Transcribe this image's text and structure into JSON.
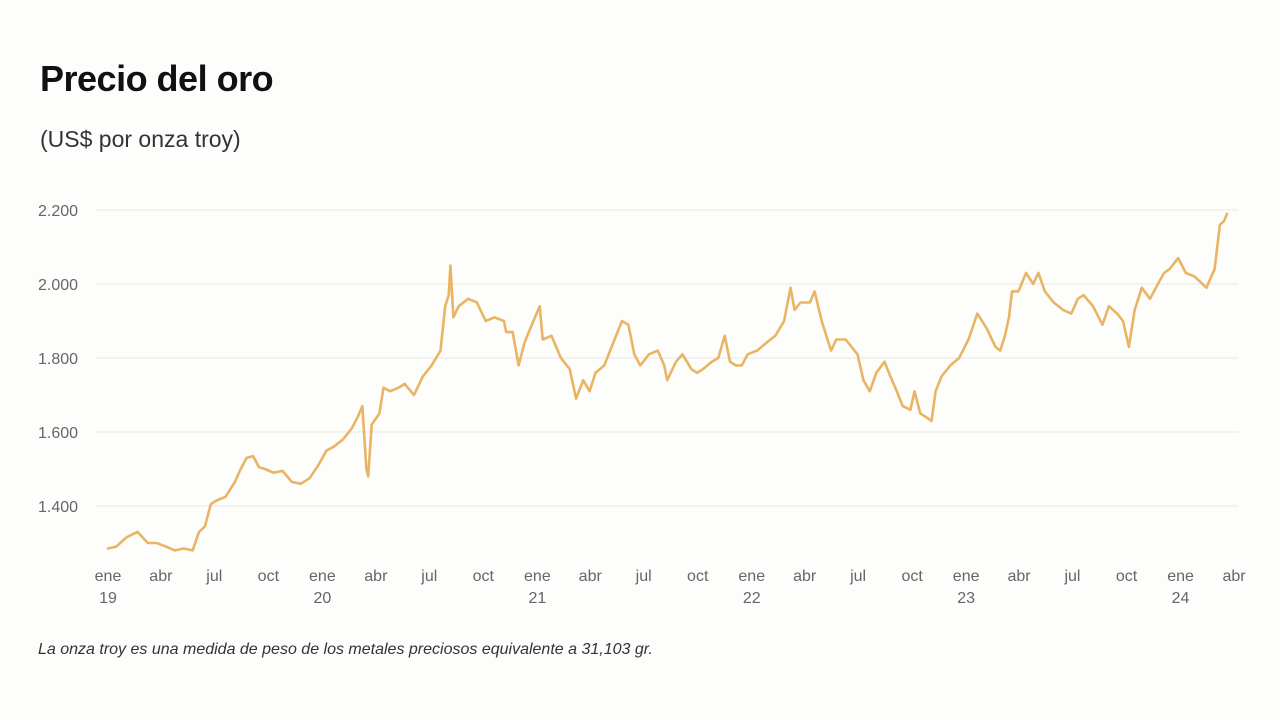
{
  "title": "Precio del oro",
  "subtitle": "(US$ por onza troy)",
  "note": "La onza troy es una medida de peso de los metales preciosos equivalente a 31,103 gr.",
  "colors": {
    "line": "#e9b564",
    "grid": "#e6e6e6",
    "tick_text": "#666666",
    "background": "#fdfdfc"
  },
  "chart_data": {
    "type": "line",
    "title": "Precio del oro",
    "subtitle": "(US$ por onza troy)",
    "xlabel": "",
    "ylabel": "",
    "ylim": [
      1250,
      2200
    ],
    "xlim": [
      "2019-01-01",
      "2024-04-01"
    ],
    "grid": "horizontal",
    "y_ticks": [
      {
        "value": 1400,
        "label": "1.400"
      },
      {
        "value": 1600,
        "label": "1.600"
      },
      {
        "value": 1800,
        "label": "1.800"
      },
      {
        "value": 2000,
        "label": "2.000"
      },
      {
        "value": 2200,
        "label": "2.200"
      }
    ],
    "x_ticks": [
      {
        "date": "2019-01-01",
        "label": "ene",
        "year": "19"
      },
      {
        "date": "2019-04-01",
        "label": "abr"
      },
      {
        "date": "2019-07-01",
        "label": "jul"
      },
      {
        "date": "2019-10-01",
        "label": "oct"
      },
      {
        "date": "2020-01-01",
        "label": "ene",
        "year": "20"
      },
      {
        "date": "2020-04-01",
        "label": "abr"
      },
      {
        "date": "2020-07-01",
        "label": "jul"
      },
      {
        "date": "2020-10-01",
        "label": "oct"
      },
      {
        "date": "2021-01-01",
        "label": "ene",
        "year": "21"
      },
      {
        "date": "2021-04-01",
        "label": "abr"
      },
      {
        "date": "2021-07-01",
        "label": "jul"
      },
      {
        "date": "2021-10-01",
        "label": "oct"
      },
      {
        "date": "2022-01-01",
        "label": "ene",
        "year": "22"
      },
      {
        "date": "2022-04-01",
        "label": "abr"
      },
      {
        "date": "2022-07-01",
        "label": "jul"
      },
      {
        "date": "2022-10-01",
        "label": "oct"
      },
      {
        "date": "2023-01-01",
        "label": "ene",
        "year": "23"
      },
      {
        "date": "2023-04-01",
        "label": "abr"
      },
      {
        "date": "2023-07-01",
        "label": "jul"
      },
      {
        "date": "2023-10-01",
        "label": "oct"
      },
      {
        "date": "2024-01-01",
        "label": "ene",
        "year": "24"
      },
      {
        "date": "2024-04-01",
        "label": "abr"
      }
    ],
    "series": [
      {
        "x": [
          "2019-01-01",
          "2019-01-15",
          "2019-02-01",
          "2019-02-20",
          "2019-03-10",
          "2019-03-25",
          "2019-04-10",
          "2019-04-25",
          "2019-05-10",
          "2019-05-25",
          "2019-06-05",
          "2019-06-15",
          "2019-06-25",
          "2019-07-05",
          "2019-07-20",
          "2019-08-05",
          "2019-08-15",
          "2019-08-25",
          "2019-09-05",
          "2019-09-15",
          "2019-09-25",
          "2019-10-10",
          "2019-10-25",
          "2019-11-10",
          "2019-11-25",
          "2019-12-10",
          "2019-12-25",
          "2020-01-08",
          "2020-01-20",
          "2020-02-05",
          "2020-02-20",
          "2020-03-01",
          "2020-03-09",
          "2020-03-16",
          "2020-03-19",
          "2020-03-25",
          "2020-04-07",
          "2020-04-14",
          "2020-04-25",
          "2020-05-10",
          "2020-05-20",
          "2020-06-05",
          "2020-06-20",
          "2020-07-05",
          "2020-07-20",
          "2020-07-28",
          "2020-08-03",
          "2020-08-06",
          "2020-08-11",
          "2020-08-20",
          "2020-09-05",
          "2020-09-20",
          "2020-10-05",
          "2020-10-20",
          "2020-11-05",
          "2020-11-09",
          "2020-11-20",
          "2020-11-30",
          "2020-12-10",
          "2020-12-20",
          "2021-01-05",
          "2021-01-10",
          "2021-01-25",
          "2021-02-10",
          "2021-02-25",
          "2021-03-08",
          "2021-03-20",
          "2021-03-31",
          "2021-04-10",
          "2021-04-25",
          "2021-05-10",
          "2021-05-25",
          "2021-06-05",
          "2021-06-15",
          "2021-06-25",
          "2021-07-10",
          "2021-07-25",
          "2021-08-05",
          "2021-08-10",
          "2021-08-25",
          "2021-09-05",
          "2021-09-20",
          "2021-09-30",
          "2021-10-10",
          "2021-10-25",
          "2021-11-05",
          "2021-11-16",
          "2021-11-25",
          "2021-12-05",
          "2021-12-15",
          "2021-12-25",
          "2022-01-10",
          "2022-01-25",
          "2022-02-10",
          "2022-02-25",
          "2022-03-08",
          "2022-03-15",
          "2022-03-25",
          "2022-04-10",
          "2022-04-18",
          "2022-04-30",
          "2022-05-10",
          "2022-05-16",
          "2022-05-25",
          "2022-06-10",
          "2022-06-20",
          "2022-06-30",
          "2022-07-10",
          "2022-07-21",
          "2022-08-01",
          "2022-08-15",
          "2022-08-25",
          "2022-09-05",
          "2022-09-15",
          "2022-09-28",
          "2022-10-05",
          "2022-10-15",
          "2022-10-25",
          "2022-11-03",
          "2022-11-10",
          "2022-11-20",
          "2022-12-05",
          "2022-12-20",
          "2023-01-05",
          "2023-01-20",
          "2023-02-05",
          "2023-02-20",
          "2023-02-28",
          "2023-03-08",
          "2023-03-15",
          "2023-03-20",
          "2023-03-31",
          "2023-04-13",
          "2023-04-25",
          "2023-05-04",
          "2023-05-15",
          "2023-05-30",
          "2023-06-15",
          "2023-06-29",
          "2023-07-10",
          "2023-07-20",
          "2023-08-05",
          "2023-08-21",
          "2023-09-01",
          "2023-09-15",
          "2023-09-25",
          "2023-10-05",
          "2023-10-15",
          "2023-10-27",
          "2023-11-10",
          "2023-11-20",
          "2023-12-04",
          "2023-12-13",
          "2023-12-28",
          "2024-01-10",
          "2024-01-25",
          "2024-02-14",
          "2024-02-28",
          "2024-03-08",
          "2024-03-15",
          "2024-03-20"
        ],
        "values": [
          1285,
          1290,
          1315,
          1330,
          1300,
          1300,
          1290,
          1280,
          1285,
          1280,
          1330,
          1345,
          1405,
          1415,
          1425,
          1465,
          1500,
          1530,
          1535,
          1505,
          1500,
          1490,
          1495,
          1465,
          1460,
          1475,
          1510,
          1550,
          1560,
          1580,
          1610,
          1640,
          1670,
          1500,
          1480,
          1620,
          1650,
          1720,
          1710,
          1720,
          1730,
          1700,
          1750,
          1780,
          1820,
          1940,
          1970,
          2050,
          1910,
          1940,
          1960,
          1950,
          1900,
          1910,
          1900,
          1870,
          1870,
          1780,
          1840,
          1880,
          1940,
          1850,
          1860,
          1800,
          1770,
          1690,
          1740,
          1710,
          1760,
          1780,
          1840,
          1900,
          1890,
          1810,
          1780,
          1810,
          1820,
          1780,
          1740,
          1790,
          1810,
          1770,
          1760,
          1770,
          1790,
          1800,
          1860,
          1790,
          1780,
          1780,
          1810,
          1820,
          1840,
          1860,
          1900,
          1990,
          1930,
          1950,
          1950,
          1980,
          1900,
          1850,
          1820,
          1850,
          1850,
          1830,
          1810,
          1740,
          1710,
          1760,
          1790,
          1750,
          1710,
          1670,
          1660,
          1710,
          1650,
          1640,
          1630,
          1710,
          1750,
          1780,
          1800,
          1850,
          1920,
          1880,
          1830,
          1820,
          1860,
          1910,
          1980,
          1980,
          2030,
          2000,
          2030,
          1980,
          1950,
          1930,
          1920,
          1960,
          1970,
          1940,
          1890,
          1940,
          1920,
          1900,
          1830,
          1930,
          1990,
          1960,
          1990,
          2030,
          2040,
          2070,
          2030,
          2020,
          1990,
          2040,
          2160,
          2170,
          2190
        ]
      }
    ]
  }
}
